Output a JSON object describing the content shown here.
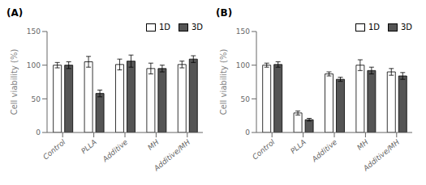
{
  "chart_data": [
    {
      "type": "bar",
      "title": "(A)",
      "categories": [
        "Control",
        "PLLA",
        "Additive",
        "MH",
        "Additive/MH"
      ],
      "series": [
        {
          "name": "1D",
          "color": "#ffffff",
          "values": [
            100,
            105,
            101,
            95,
            101
          ],
          "errors": [
            4,
            8,
            8,
            8,
            5
          ]
        },
        {
          "name": "3D",
          "color": "#555555",
          "values": [
            100,
            58,
            106,
            95,
            109
          ],
          "errors": [
            5,
            5,
            9,
            5,
            5
          ]
        }
      ],
      "ylabel": "Cell viability (%)",
      "ylim": [
        0,
        150
      ],
      "yticks": [
        0,
        50,
        100,
        150
      ],
      "legend": "upper right",
      "grid": false
    },
    {
      "type": "bar",
      "title": "(B)",
      "categories": [
        "Control",
        "PLLA",
        "Additive",
        "MH",
        "Additive/MH"
      ],
      "series": [
        {
          "name": "1D",
          "color": "#ffffff",
          "values": [
            100,
            29,
            87,
            100,
            90
          ],
          "errors": [
            3,
            3,
            3,
            8,
            5
          ]
        },
        {
          "name": "3D",
          "color": "#555555",
          "values": [
            101,
            19,
            79,
            92,
            84
          ],
          "errors": [
            4,
            2,
            3,
            5,
            5
          ]
        }
      ],
      "ylabel": "Cell viability (%)",
      "ylim": [
        0,
        150
      ],
      "yticks": [
        0,
        50,
        100,
        150
      ],
      "legend": "upper right",
      "grid": false
    }
  ]
}
